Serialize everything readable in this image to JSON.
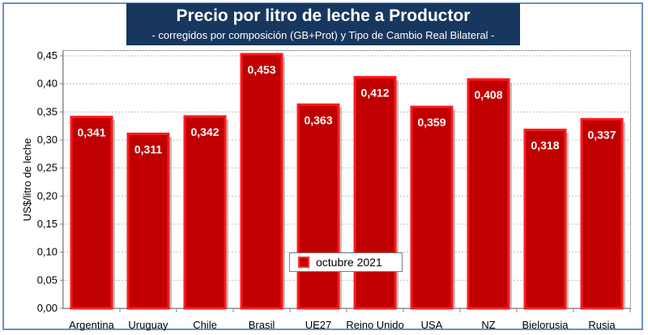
{
  "title": "Precio por litro de leche a Productor",
  "subtitle": "-  corregidos por composición (GB+Prot) y Tipo de Cambio Real Bilateral -",
  "colors": {
    "bar_fill": "#c00000",
    "bar_border": "#ff1a1a",
    "title_bg": "#17375e",
    "frame": "#6b8fc6"
  },
  "chart_data": {
    "type": "bar",
    "categories": [
      "Argentina",
      "Uruguay",
      "Chile",
      "Brasil",
      "UE27",
      "Reino Unido",
      "USA",
      "NZ",
      "Bielorusia",
      "Rusia"
    ],
    "series": [
      {
        "name": "octubre 2021",
        "values": [
          0.341,
          0.311,
          0.342,
          0.453,
          0.363,
          0.412,
          0.359,
          0.408,
          0.318,
          0.337
        ]
      }
    ],
    "data_labels": [
      "0,341",
      "0,311",
      "0,342",
      "0,453",
      "0,363",
      "0,412",
      "0,359",
      "0,408",
      "0,318",
      "0,337"
    ],
    "ylabel": "US$/litro de leche",
    "ylim": [
      0,
      0.45
    ],
    "yticks": [
      "0,00",
      "0,05",
      "0,10",
      "0,15",
      "0,20",
      "0,25",
      "0,30",
      "0,35",
      "0,40",
      "0,45"
    ],
    "grid": true,
    "legend_position": "bottom-center"
  }
}
